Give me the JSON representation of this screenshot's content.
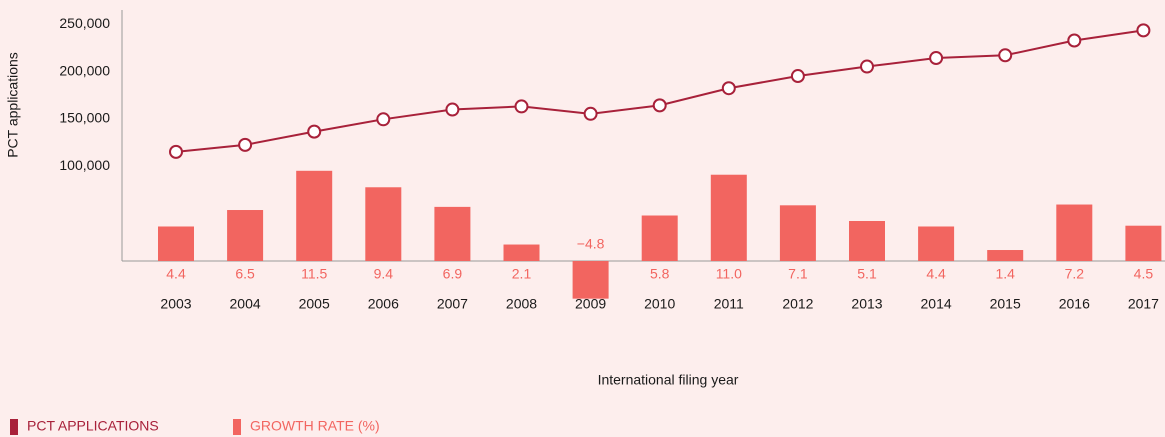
{
  "chart_data": {
    "type": "bar-line",
    "y_label": "PCT applications",
    "x_label": "International filing year",
    "categories": [
      "2003",
      "2004",
      "2005",
      "2006",
      "2007",
      "2008",
      "2009",
      "2010",
      "2011",
      "2012",
      "2013",
      "2014",
      "2015",
      "2016",
      "2017"
    ],
    "series": [
      {
        "name": "PCT APPLICATIONS",
        "type": "line",
        "color": "#a8213a",
        "values": [
          115200,
          122600,
          136600,
          149600,
          159900,
          163200,
          155400,
          164300,
          182400,
          195300,
          205300,
          214300,
          217200,
          232800,
          243500
        ]
      },
      {
        "name": "GROWTH RATE (%)",
        "type": "bar",
        "axis": "y2",
        "color": "#f26560",
        "values": [
          4.4,
          6.5,
          11.5,
          9.4,
          6.9,
          2.1,
          -4.8,
          5.8,
          11.0,
          7.1,
          5.1,
          4.4,
          1.4,
          7.2,
          4.5
        ],
        "value_labels": [
          "4.4",
          "6.5",
          "11.5",
          "9.4",
          "6.9",
          "2.1",
          "−4.8",
          "5.8",
          "11.0",
          "7.1",
          "5.1",
          "4.4",
          "1.4",
          "7.2",
          "4.5"
        ]
      }
    ],
    "ylim": [
      0,
      265000
    ],
    "yticks": [
      {
        "value": 100000,
        "label": "100,000"
      },
      {
        "value": 150000,
        "label": "150,000"
      },
      {
        "value": 200000,
        "label": "200,000"
      },
      {
        "value": 250000,
        "label": "250,000"
      }
    ],
    "y2lim": [
      0,
      32
    ],
    "grid": false,
    "legend": "bottom-left"
  }
}
